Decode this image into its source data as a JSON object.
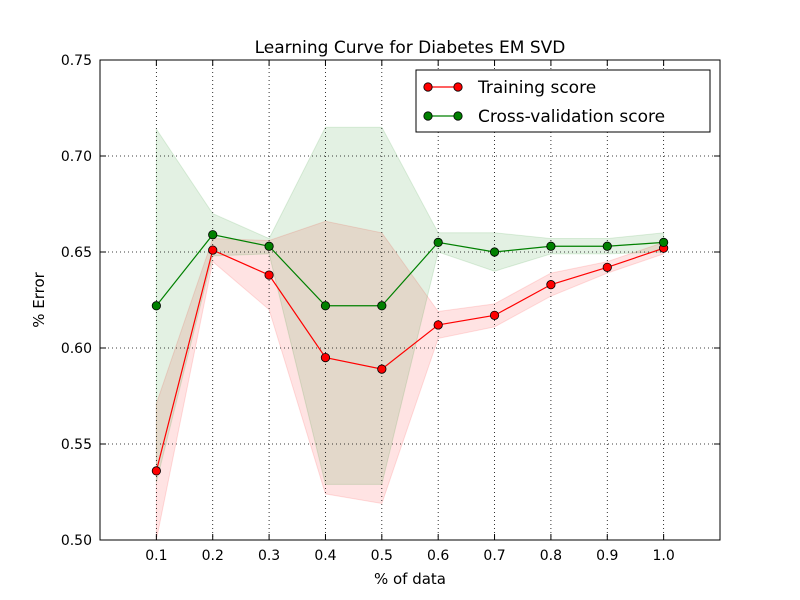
{
  "chart_data": {
    "type": "line",
    "title": "Learning Curve for Diabetes EM SVD",
    "xlabel": "% of data",
    "ylabel": "% Error",
    "xlim": [
      0.0,
      1.1
    ],
    "ylim": [
      0.5,
      0.75
    ],
    "x": [
      0.1,
      0.2,
      0.3,
      0.4,
      0.5,
      0.6,
      0.7,
      0.8,
      0.9,
      1.0
    ],
    "x_tick_labels": [
      "0.1",
      "0.2",
      "0.3",
      "0.4",
      "0.5",
      "0.6",
      "0.7",
      "0.8",
      "0.9",
      "1.0"
    ],
    "y_ticks": [
      0.5,
      0.55,
      0.6,
      0.65,
      0.7,
      0.75
    ],
    "y_tick_labels": [
      "0.50",
      "0.55",
      "0.60",
      "0.65",
      "0.70",
      "0.75"
    ],
    "grid": true,
    "legend_position": "top-right",
    "series": [
      {
        "name": "Training score",
        "color": "#ff0000",
        "marker_color": "#ff0000",
        "band_color": "#ff0000",
        "values": [
          0.536,
          0.651,
          0.638,
          0.595,
          0.589,
          0.612,
          0.617,
          0.633,
          0.642,
          0.652
        ],
        "upper": [
          0.571,
          0.657,
          0.656,
          0.666,
          0.66,
          0.619,
          0.623,
          0.639,
          0.645,
          0.655
        ],
        "lower": [
          0.5,
          0.645,
          0.62,
          0.524,
          0.519,
          0.605,
          0.611,
          0.627,
          0.639,
          0.649
        ]
      },
      {
        "name": "Cross-validation score",
        "color": "#008000",
        "marker_color": "#008000",
        "band_color": "#008000",
        "values": [
          0.622,
          0.659,
          0.653,
          0.622,
          0.622,
          0.655,
          0.65,
          0.653,
          0.653,
          0.655
        ],
        "upper": [
          0.714,
          0.67,
          0.657,
          0.715,
          0.715,
          0.66,
          0.66,
          0.657,
          0.657,
          0.66
        ],
        "lower": [
          0.53,
          0.648,
          0.649,
          0.529,
          0.529,
          0.65,
          0.64,
          0.649,
          0.649,
          0.65
        ]
      }
    ]
  }
}
